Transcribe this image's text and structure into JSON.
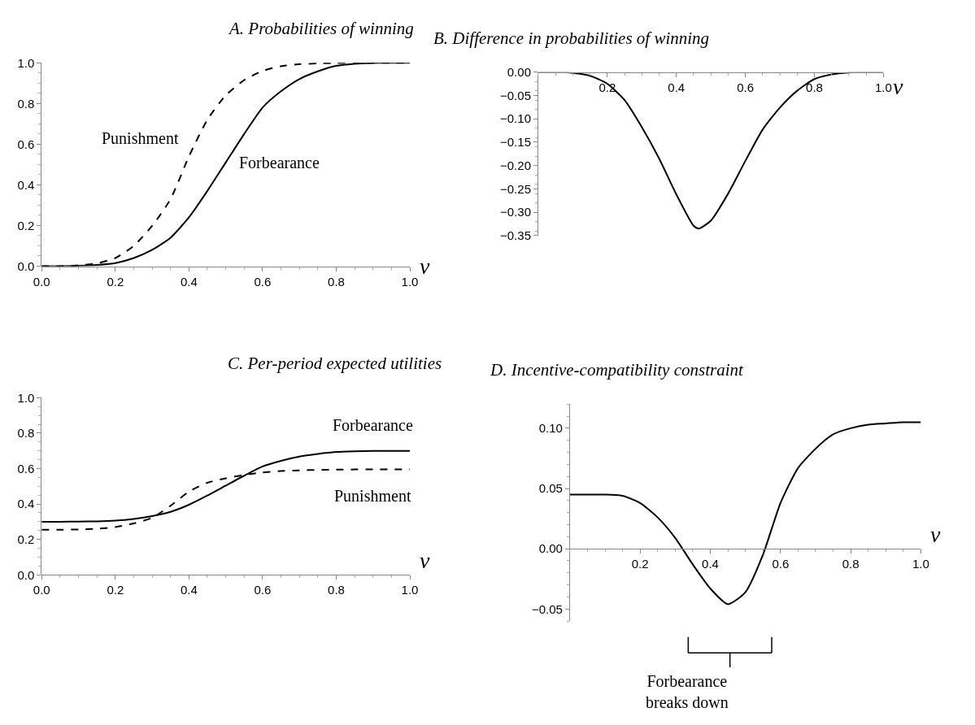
{
  "chart_data": [
    {
      "type": "line",
      "title": "A. Probabilities of winning",
      "xlabel": "v",
      "xlim": [
        0,
        1
      ],
      "ylim": [
        0,
        1
      ],
      "xticks": [
        {
          "value": 0,
          "label": "0.0"
        },
        {
          "value": 0.2,
          "label": "0.2"
        },
        {
          "value": 0.4,
          "label": "0.4"
        },
        {
          "value": 0.6,
          "label": "0.6"
        },
        {
          "value": 0.8,
          "label": "0.8"
        },
        {
          "value": 1,
          "label": "1.0"
        }
      ],
      "yticks": [
        {
          "value": 0,
          "label": "0.0"
        },
        {
          "value": 0.2,
          "label": "0.2"
        },
        {
          "value": 0.4,
          "label": "0.4"
        },
        {
          "value": 0.6,
          "label": "0.6"
        },
        {
          "value": 0.8,
          "label": "0.8"
        },
        {
          "value": 1,
          "label": "1.0"
        }
      ],
      "x": [
        0,
        0.05,
        0.1,
        0.15,
        0.2,
        0.25,
        0.3,
        0.35,
        0.4,
        0.45,
        0.5,
        0.55,
        0.6,
        0.65,
        0.7,
        0.75,
        0.8,
        0.85,
        0.9,
        0.95,
        1
      ],
      "series": [
        {
          "name": "Punishment",
          "color": "#000000",
          "line_style": "dashed",
          "values": [
            0,
            0,
            0.004,
            0.014,
            0.04,
            0.1,
            0.198,
            0.33,
            0.54,
            0.72,
            0.84,
            0.915,
            0.96,
            0.983,
            0.993,
            0.997,
            0.999,
            1,
            1,
            1,
            1
          ]
        },
        {
          "name": "Forbearance",
          "color": "#000000",
          "line_style": "solid",
          "values": [
            0,
            0,
            0.002,
            0.006,
            0.015,
            0.04,
            0.08,
            0.14,
            0.24,
            0.37,
            0.51,
            0.65,
            0.78,
            0.86,
            0.92,
            0.958,
            0.985,
            0.995,
            0.999,
            1,
            1
          ]
        }
      ],
      "tick_labels": true
    },
    {
      "type": "line",
      "title": "B. Difference in probabilities of winning",
      "xlabel": "v",
      "xlim": [
        0,
        1
      ],
      "ylim": [
        -0.35,
        0
      ],
      "xticks": [
        {
          "value": 0.2,
          "label": "0.2"
        },
        {
          "value": 0.4,
          "label": "0.4"
        },
        {
          "value": 0.6,
          "label": "0.6"
        },
        {
          "value": 0.8,
          "label": "0.8"
        },
        {
          "value": 1,
          "label": "1.0"
        }
      ],
      "yticks": [
        {
          "value": 0,
          "label": "0.00"
        },
        {
          "value": -0.05,
          "label": "−0.05"
        },
        {
          "value": -0.1,
          "label": "−0.10"
        },
        {
          "value": -0.15,
          "label": "−0.15"
        },
        {
          "value": -0.2,
          "label": "−0.20"
        },
        {
          "value": -0.25,
          "label": "−0.25"
        },
        {
          "value": -0.3,
          "label": "−0.30"
        },
        {
          "value": -0.35,
          "label": "−0.35"
        }
      ],
      "x": [
        0,
        0.05,
        0.1,
        0.15,
        0.2,
        0.25,
        0.3,
        0.35,
        0.4,
        0.45,
        0.465,
        0.5,
        0.55,
        0.6,
        0.65,
        0.7,
        0.75,
        0.8,
        0.85,
        0.9,
        0.95,
        1
      ],
      "series": [
        {
          "color": "#000000",
          "line_style": "solid",
          "values": [
            0,
            0,
            -0.002,
            -0.008,
            -0.025,
            -0.06,
            -0.118,
            -0.185,
            -0.262,
            -0.329,
            -0.335,
            -0.318,
            -0.26,
            -0.19,
            -0.123,
            -0.076,
            -0.04,
            -0.015,
            -0.005,
            -0.001,
            0,
            0
          ]
        }
      ],
      "tick_labels": true
    },
    {
      "type": "line",
      "title": "C. Per-period expected utilities",
      "xlabel": "v",
      "xlim": [
        0,
        1
      ],
      "ylim": [
        0,
        1
      ],
      "xticks": [
        {
          "value": 0,
          "label": "0.0"
        },
        {
          "value": 0.2,
          "label": "0.2"
        },
        {
          "value": 0.4,
          "label": "0.4"
        },
        {
          "value": 0.6,
          "label": "0.6"
        },
        {
          "value": 0.8,
          "label": "0.8"
        },
        {
          "value": 1,
          "label": "1.0"
        }
      ],
      "yticks": [
        {
          "value": 0,
          "label": "0.0"
        },
        {
          "value": 0.2,
          "label": "0.2"
        },
        {
          "value": 0.4,
          "label": "0.4"
        },
        {
          "value": 0.6,
          "label": "0.6"
        },
        {
          "value": 0.8,
          "label": "0.8"
        },
        {
          "value": 1,
          "label": "1.0"
        }
      ],
      "x": [
        0,
        0.05,
        0.1,
        0.15,
        0.2,
        0.25,
        0.3,
        0.35,
        0.4,
        0.45,
        0.5,
        0.55,
        0.6,
        0.65,
        0.7,
        0.75,
        0.8,
        0.85,
        0.9,
        0.95,
        1
      ],
      "series": [
        {
          "name": "Forbearance",
          "color": "#000000",
          "line_style": "solid",
          "values": [
            0.3,
            0.3,
            0.301,
            0.302,
            0.306,
            0.316,
            0.332,
            0.356,
            0.396,
            0.448,
            0.504,
            0.56,
            0.612,
            0.644,
            0.668,
            0.683,
            0.694,
            0.698,
            0.7,
            0.7,
            0.7
          ]
        },
        {
          "name": "Punishment",
          "color": "#000000",
          "line_style": "dashed",
          "values": [
            0.255,
            0.255,
            0.256,
            0.26,
            0.27,
            0.29,
            0.322,
            0.39,
            0.47,
            0.52,
            0.545,
            0.564,
            0.578,
            0.586,
            0.59,
            0.593,
            0.594,
            0.595,
            0.595,
            0.595,
            0.595
          ]
        }
      ],
      "tick_labels": true
    },
    {
      "type": "line",
      "title": "D. Incentive-compatibility constraint",
      "xlabel": "v",
      "xlim": [
        0,
        1
      ],
      "ylim": [
        -0.06,
        0.12
      ],
      "xticks": [
        {
          "value": 0.2,
          "label": "0.2"
        },
        {
          "value": 0.4,
          "label": "0.4"
        },
        {
          "value": 0.6,
          "label": "0.6"
        },
        {
          "value": 0.8,
          "label": "0.8"
        },
        {
          "value": 1,
          "label": "1.0"
        }
      ],
      "yticks": [
        {
          "value": -0.05,
          "label": "−0.05"
        },
        {
          "value": 0,
          "label": "0.00"
        },
        {
          "value": 0.05,
          "label": "0.05"
        },
        {
          "value": 0.1,
          "label": "0.10"
        }
      ],
      "x": [
        0,
        0.05,
        0.1,
        0.15,
        0.2,
        0.25,
        0.3,
        0.35,
        0.4,
        0.45,
        0.5,
        0.55,
        0.6,
        0.65,
        0.7,
        0.75,
        0.8,
        0.85,
        0.9,
        0.95,
        1
      ],
      "series": [
        {
          "color": "#000000",
          "line_style": "solid",
          "values": [
            0.045,
            0.045,
            0.045,
            0.044,
            0.038,
            0.026,
            0.009,
            -0.013,
            -0.033,
            -0.046,
            -0.036,
            -0.005,
            0.038,
            0.067,
            0.083,
            0.095,
            0.1,
            0.103,
            0.104,
            0.105,
            0.105
          ]
        }
      ],
      "annotations": [
        "Forbearance\nbreaks down"
      ],
      "tick_labels": true
    }
  ]
}
